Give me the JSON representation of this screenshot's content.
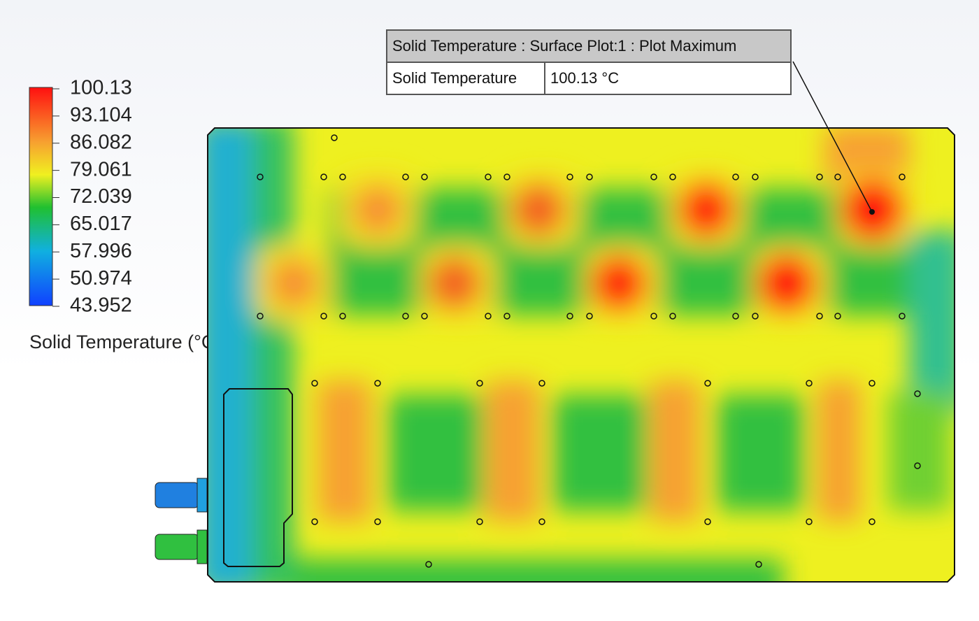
{
  "legend": {
    "ticks": [
      "100.13",
      "93.104",
      "86.082",
      "79.061",
      "72.039",
      "65.017",
      "57.996",
      "50.974",
      "43.952"
    ],
    "title": "Solid Temperature (°C)"
  },
  "callout": {
    "title": "Solid Temperature : Surface Plot:1 : Plot Maximum",
    "label": "Solid Temperature",
    "value": "100.13 °C"
  }
}
